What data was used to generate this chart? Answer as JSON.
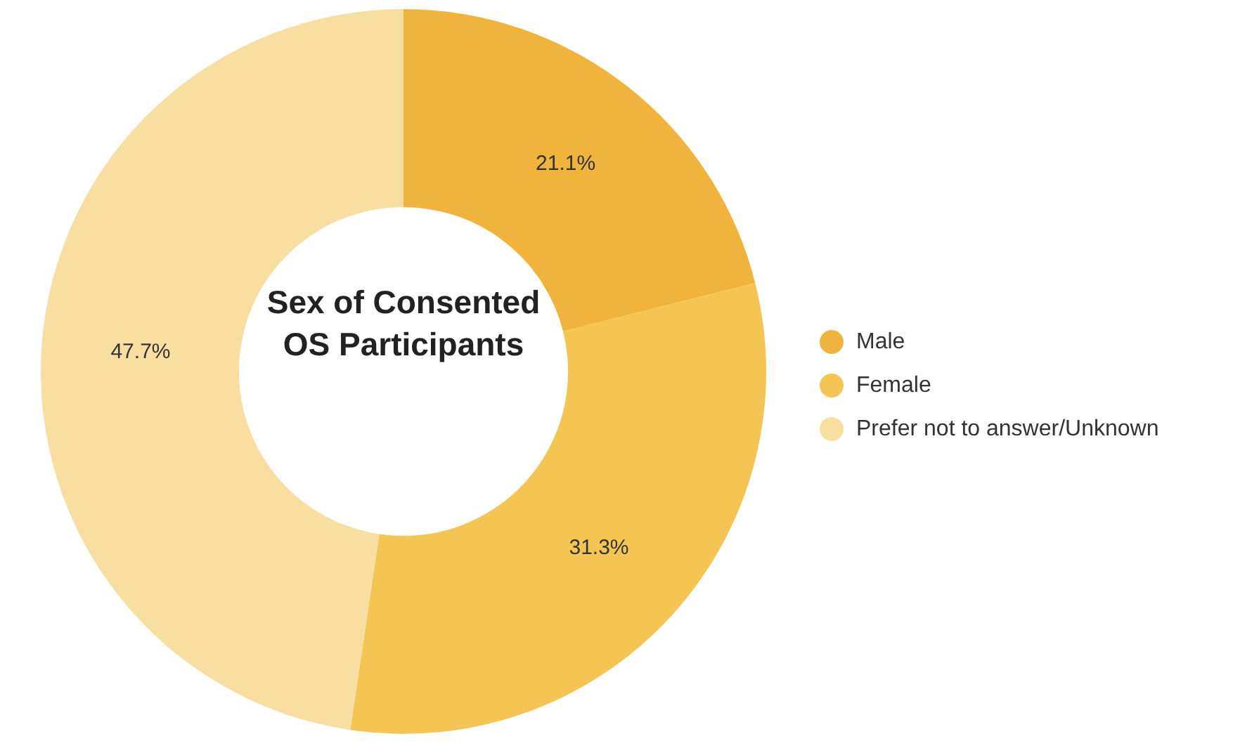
{
  "chart_data": {
    "type": "donut",
    "title": "Sex of Consented OS Participants",
    "categories": [
      "Male",
      "Female",
      "Prefer not to answer/Unknown"
    ],
    "values": [
      21.1,
      31.3,
      47.7
    ],
    "value_labels": [
      "21.1%",
      "31.3%",
      "47.7%"
    ],
    "colors": [
      "#f0b43c",
      "#f5c554",
      "#f8dfa1"
    ],
    "legend": "right"
  }
}
